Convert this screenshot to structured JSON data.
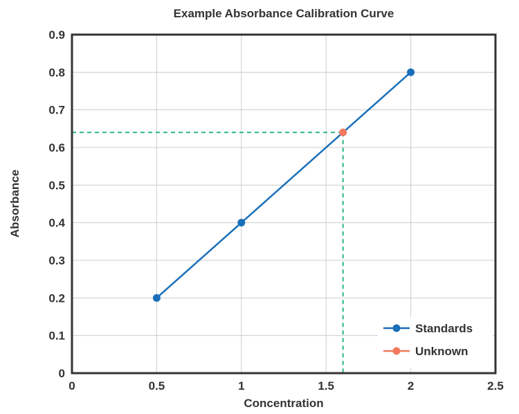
{
  "chart_data": {
    "type": "line",
    "title": "Example Absorbance Calibration Curve",
    "xlabel": "Concentration",
    "ylabel": "Absorbance",
    "xlim": [
      0,
      2.5
    ],
    "ylim": [
      0,
      0.9
    ],
    "xticks": [
      "0",
      "0.5",
      "1",
      "1.5",
      "2",
      "2.5"
    ],
    "xtick_values": [
      0,
      0.5,
      1,
      1.5,
      2,
      2.5
    ],
    "yticks": [
      "0",
      "0.1",
      "0.2",
      "0.3",
      "0.4",
      "0.5",
      "0.6",
      "0.7",
      "0.8",
      "0.9"
    ],
    "ytick_values": [
      0,
      0.1,
      0.2,
      0.3,
      0.4,
      0.5,
      0.6,
      0.7,
      0.8,
      0.9
    ],
    "grid": true,
    "legend_position": "bottom-right",
    "series": [
      {
        "name": "Standards",
        "color": "#1a6fba",
        "x": [
          0.5,
          1,
          2
        ],
        "y": [
          0.2,
          0.4,
          0.8
        ]
      },
      {
        "name": "Unknown",
        "color": "#f27b5f",
        "x": [
          1.6
        ],
        "y": [
          0.64
        ]
      }
    ],
    "reference_lines": {
      "color": "#2bb585",
      "x": 1.6,
      "y": 0.64
    }
  }
}
